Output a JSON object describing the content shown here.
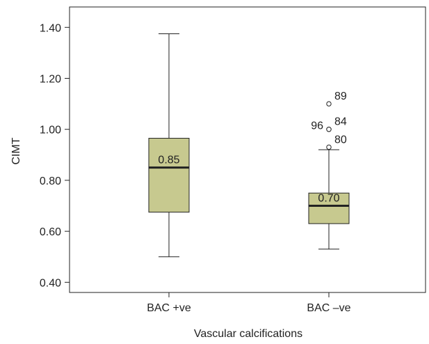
{
  "chart_data": {
    "type": "box",
    "xlabel": "Vascular calcifications",
    "ylabel": "CIMT",
    "ylim": [
      0.36,
      1.48
    ],
    "yticks": [
      0.4,
      0.6,
      0.8,
      1.0,
      1.2,
      1.4
    ],
    "ytick_labels": [
      "0.40",
      "0.60",
      "0.80",
      "1.00",
      "1.20",
      "1.40"
    ],
    "grid": false,
    "box_color": "#c7c98f",
    "categories": [
      "BAC +ve",
      "BAC –ve"
    ],
    "boxes": [
      {
        "category": "BAC +ve",
        "whisker_low": 0.5,
        "q1": 0.675,
        "median": 0.85,
        "q3": 0.965,
        "whisker_high": 1.375,
        "median_label": "0.85",
        "outliers": []
      },
      {
        "category": "BAC –ve",
        "whisker_low": 0.53,
        "q1": 0.63,
        "median": 0.7,
        "q3": 0.75,
        "whisker_high": 0.92,
        "median_label": "0.70",
        "outliers": [
          {
            "value": 0.93,
            "label": "80"
          },
          {
            "value": 1.0,
            "label": "84"
          },
          {
            "value": 1.0,
            "label": "96"
          },
          {
            "value": 1.1,
            "label": "89"
          }
        ]
      }
    ]
  }
}
